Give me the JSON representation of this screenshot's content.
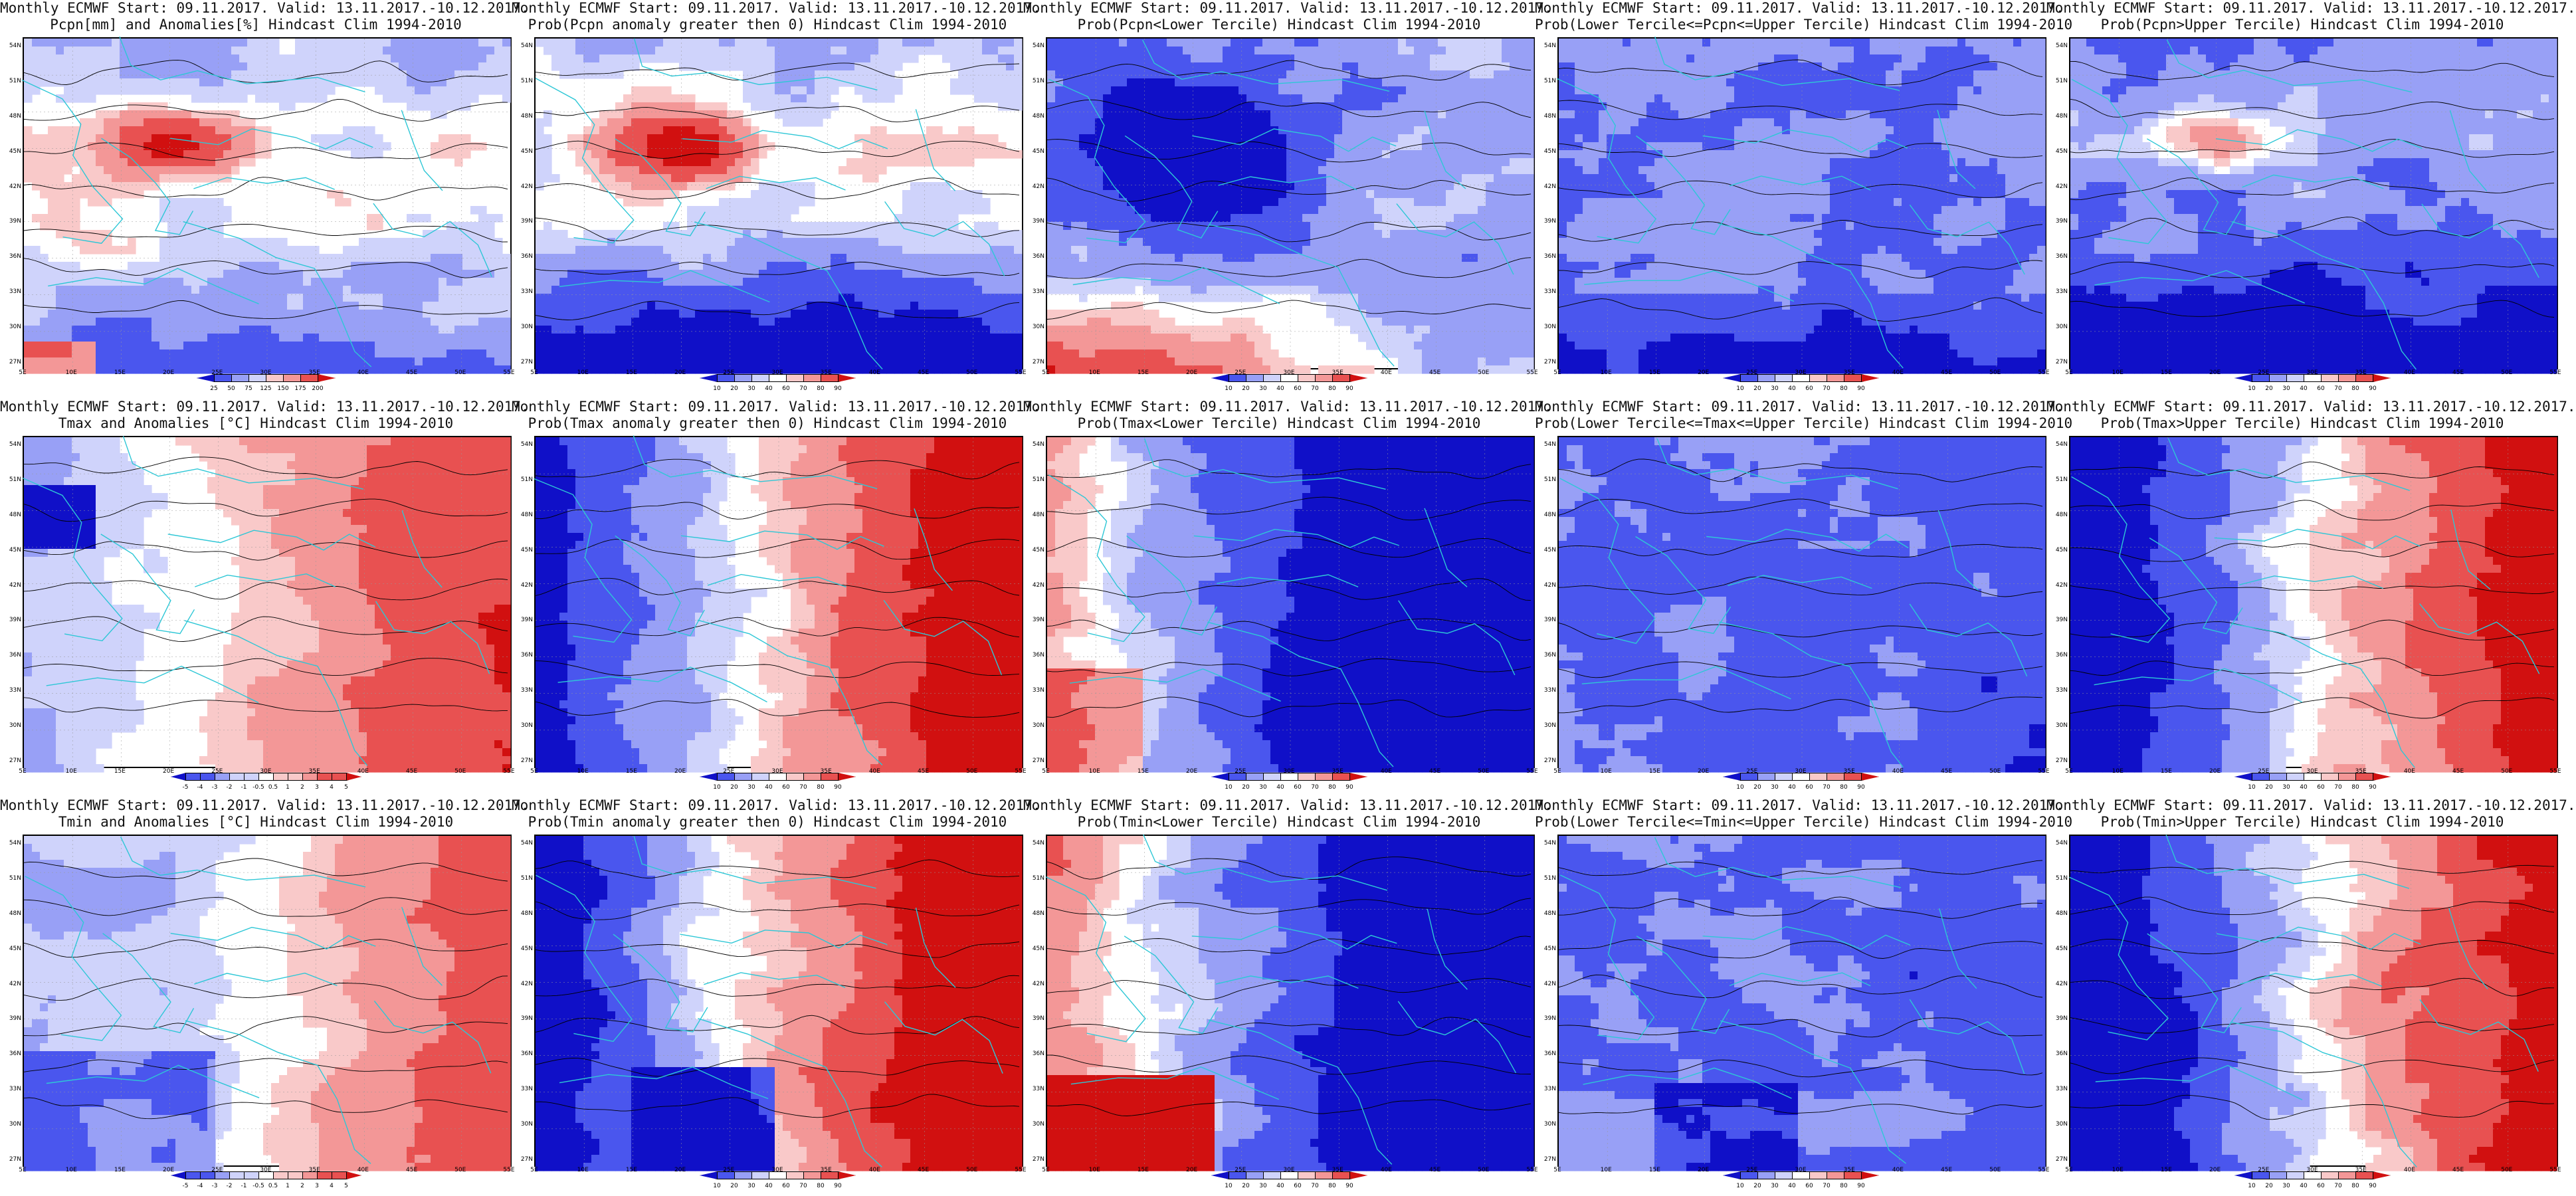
{
  "colors": {
    "blue_dark": "#1010c8",
    "blue_mid": "#4a56ee",
    "blue_light": "#98a0f6",
    "blue_pale": "#cfd3fb",
    "white": "#ffffff",
    "red_pale": "#f9c9c9",
    "red_light": "#f39797",
    "red_mid": "#e85151",
    "red_dark": "#d11010",
    "coast": "#2ec7d6",
    "contour": "#000000"
  },
  "axes": {
    "lat_labels": [
      "54N",
      "51N",
      "48N",
      "45N",
      "42N",
      "39N",
      "36N",
      "33N",
      "30N",
      "27N"
    ],
    "lon_labels": [
      "5E",
      "10E",
      "15E",
      "20E",
      "25E",
      "30E",
      "35E",
      "40E",
      "45E",
      "50E",
      "55E"
    ]
  },
  "colorbars": {
    "precip_anom": [
      "25",
      "50",
      "75",
      "125",
      "150",
      "175",
      "200"
    ],
    "temp_anom": [
      "-5",
      "-4",
      "-3",
      "-2",
      "-1",
      "-0.5",
      "0.5",
      "1",
      "2",
      "3",
      "4",
      "5"
    ],
    "prob": [
      "10",
      "20",
      "30",
      "40",
      "60",
      "70",
      "80",
      "90"
    ]
  },
  "panels": [
    {
      "line1": "Monthly ECMWF Start: 09.11.2017. Valid: 13.11.2017.-10.12.2017.",
      "line2": "Pcpn[mm] and Anomalies[%] Hindcast Clim 1994-2010",
      "cbar": "precip_anom",
      "pattern": "p_anom"
    },
    {
      "line1": "Monthly ECMWF Start: 09.11.2017. Valid: 13.11.2017.-10.12.2017.",
      "line2": "Prob(Pcpn anomaly greater then 0) Hindcast Clim 1994-2010",
      "cbar": "prob",
      "pattern": "p_gt0"
    },
    {
      "line1": "Monthly ECMWF Start: 09.11.2017. Valid: 13.11.2017.-10.12.2017.",
      "line2": "Prob(Pcpn<Lower Tercile) Hindcast Clim 1994-2010",
      "cbar": "prob",
      "pattern": "p_low"
    },
    {
      "line1": "Monthly ECMWF Start: 09.11.2017. Valid: 13.11.2017.-10.12.2017.",
      "line2": "Prob(Lower Tercile<=Pcpn<=Upper Tercile) Hindcast Clim 1994-2010",
      "cbar": "prob",
      "pattern": "p_mid"
    },
    {
      "line1": "Monthly ECMWF Start: 09.11.2017. Valid: 13.11.2017.-10.12.2017.",
      "line2": "Prob(Pcpn>Upper Tercile) Hindcast Clim 1994-2010",
      "cbar": "prob",
      "pattern": "p_up"
    },
    {
      "line1": "Monthly ECMWF Start: 09.11.2017. Valid: 13.11.2017.-10.12.2017.",
      "line2": "Tmax and Anomalies [°C] Hindcast Clim 1994-2010",
      "cbar": "temp_anom",
      "pattern": "t_anom"
    },
    {
      "line1": "Monthly ECMWF Start: 09.11.2017. Valid: 13.11.2017.-10.12.2017.",
      "line2": "Prob(Tmax anomaly greater then 0) Hindcast Clim 1994-2010",
      "cbar": "prob",
      "pattern": "t_gt0"
    },
    {
      "line1": "Monthly ECMWF Start: 09.11.2017. Valid: 13.11.2017.-10.12.2017.",
      "line2": "Prob(Tmax<Lower Tercile) Hindcast Clim 1994-2010",
      "cbar": "prob",
      "pattern": "t_low"
    },
    {
      "line1": "Monthly ECMWF Start: 09.11.2017. Valid: 13.11.2017.-10.12.2017.",
      "line2": "Prob(Lower Tercile<=Tmax<=Upper Tercile) Hindcast Clim 1994-2010",
      "cbar": "prob",
      "pattern": "t_mid"
    },
    {
      "line1": "Monthly ECMWF Start: 09.11.2017. Valid: 13.11.2017.-10.12.2017.",
      "line2": "Prob(Tmax>Upper Tercile) Hindcast Clim 1994-2010",
      "cbar": "prob",
      "pattern": "t_up"
    },
    {
      "line1": "Monthly ECMWF Start: 09.11.2017. Valid: 13.11.2017.-10.12.2017.",
      "line2": "Tmin and Anomalies [°C] Hindcast Clim 1994-2010",
      "cbar": "temp_anom",
      "pattern": "n_anom"
    },
    {
      "line1": "Monthly ECMWF Start: 09.11.2017. Valid: 13.11.2017.-10.12.2017.",
      "line2": "Prob(Tmin anomaly greater then 0) Hindcast Clim 1994-2010",
      "cbar": "prob",
      "pattern": "n_gt0"
    },
    {
      "line1": "Monthly ECMWF Start: 09.11.2017. Valid: 13.11.2017.-10.12.2017.",
      "line2": "Prob(Tmin<Lower Tercile) Hindcast Clim 1994-2010",
      "cbar": "prob",
      "pattern": "n_low"
    },
    {
      "line1": "Monthly ECMWF Start: 09.11.2017. Valid: 13.11.2017.-10.12.2017.",
      "line2": "Prob(Lower Tercile<=Tmin<=Upper Tercile) Hindcast Clim 1994-2010",
      "cbar": "prob",
      "pattern": "n_mid"
    },
    {
      "line1": "Monthly ECMWF Start: 09.11.2017. Valid: 13.11.2017.-10.12.2017.",
      "line2": "Prob(Tmin>Upper Tercile) Hindcast Clim 1994-2010",
      "cbar": "prob",
      "pattern": "n_up"
    }
  ]
}
